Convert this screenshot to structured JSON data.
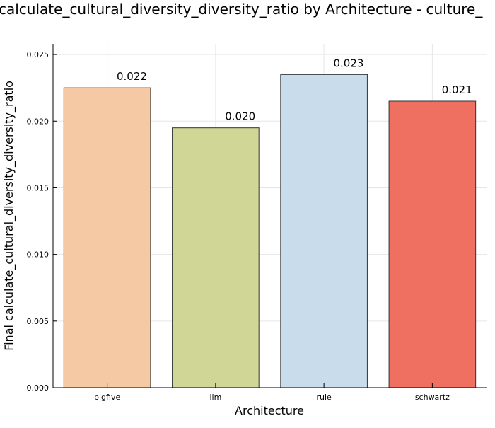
{
  "chart_data": {
    "type": "bar",
    "title": "calculate_cultural_diversity_diversity_ratio by Architecture - culture_",
    "xlabel": "Architecture",
    "ylabel": "Final calculate_cultural_diversity_diversity_ratio",
    "categories": [
      "bigfive",
      "llm",
      "rule",
      "schwartz"
    ],
    "values": [
      0.0225,
      0.0195,
      0.0235,
      0.0215
    ],
    "data_labels": [
      "0.022",
      "0.020",
      "0.023",
      "0.021"
    ],
    "bar_colors": [
      "#F5C9A3",
      "#D0D696",
      "#C8DCEB",
      "#EF7060"
    ],
    "ylim": [
      0,
      0.0258
    ],
    "yticks": [
      0,
      0.005,
      0.01,
      0.015,
      0.02,
      0.025
    ],
    "ytick_labels": [
      "0.000",
      "0.005",
      "0.010",
      "0.015",
      "0.020",
      "0.025"
    ],
    "grid": true,
    "legend": "none"
  }
}
